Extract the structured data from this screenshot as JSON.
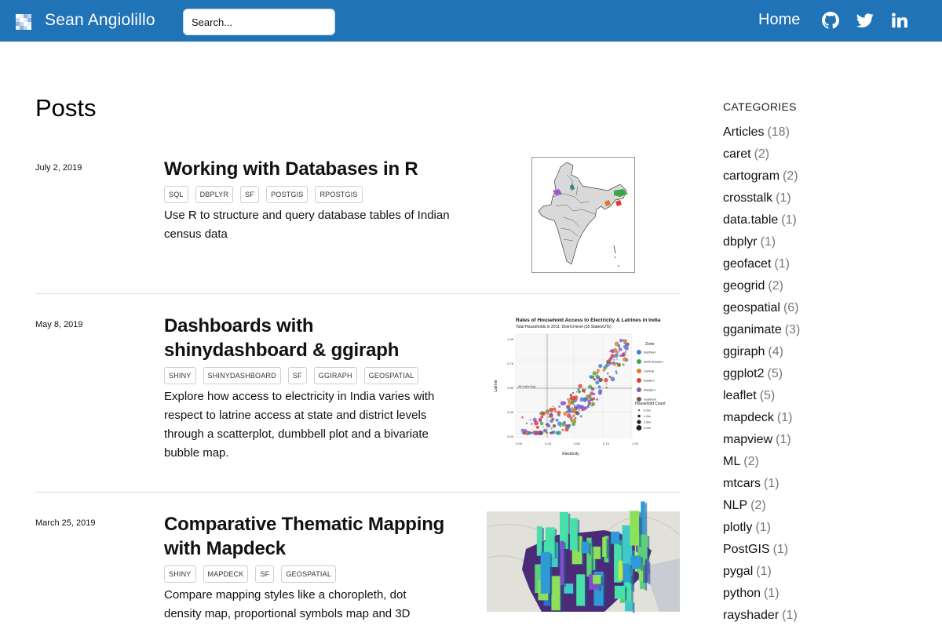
{
  "nav": {
    "brand": "Sean Angiolillo",
    "search_placeholder": "Search...",
    "home_label": "Home",
    "icons": [
      "github-icon",
      "twitter-icon",
      "linkedin-icon"
    ],
    "bar_color": "#1f73b6"
  },
  "page_title": "Posts",
  "posts": [
    {
      "date": "July 2, 2019",
      "title": "Working with Databases in R",
      "tags": [
        "SQL",
        "DBPLYR",
        "SF",
        "POSTGIS",
        "RPOSTGIS"
      ],
      "description": "Use R to structure and query database tables of Indian census data"
    },
    {
      "date": "May 8, 2019",
      "title": "Dashboards with shinydashboard & ggiraph",
      "tags": [
        "SHINY",
        "SHINYDASHBOARD",
        "SF",
        "GGIRAPH",
        "GEOSPATIAL"
      ],
      "description": "Explore how access to electricity in India varies with respect to latrine access at state and district levels through a scatterplot, dumbbell plot and a bivariate bubble map.",
      "thumbnail": {
        "title": "Rates of Household Access to Electricity & Latrines in India",
        "subtitle": "Total Households in 2011: District-level (35 States/UTs)",
        "xlabel": "Electricity",
        "ylabel": "Latrine",
        "annotation": "All India Avg.",
        "x_ticks": [
          "0.00",
          "0.25",
          "0.50",
          "0.75",
          "1.00"
        ],
        "y_ticks": [
          "1.00",
          "0.75",
          "0.50",
          "0.25",
          "0.00"
        ],
        "zone_title": "Zone",
        "zones": [
          {
            "name": "Northern",
            "color": "#3a7dd8"
          },
          {
            "name": "North Eastern",
            "color": "#3aa84a"
          },
          {
            "name": "Central",
            "color": "#e07a2a"
          },
          {
            "name": "Eastern",
            "color": "#e4372d"
          },
          {
            "name": "Western",
            "color": "#8d54c4"
          },
          {
            "name": "Southern",
            "color": "#8b4a3c"
          }
        ],
        "count_title": "Household Count",
        "counts": [
          "0.5m",
          "1.0m",
          "1.5m",
          "2.0m"
        ]
      }
    },
    {
      "date": "March 25, 2019",
      "title": "Comparative Thematic Mapping with Mapdeck",
      "tags": [
        "SHINY",
        "MAPDECK",
        "SF",
        "GEOSPATIAL"
      ],
      "description": "Compare mapping styles like a choropleth, dot density map, proportional symbols map and 3D"
    }
  ],
  "sidebar": {
    "heading": "CATEGORIES",
    "categories": [
      {
        "name": "Articles",
        "count": "(18)"
      },
      {
        "name": "caret",
        "count": "(2)"
      },
      {
        "name": "cartogram",
        "count": "(2)"
      },
      {
        "name": "crosstalk",
        "count": "(1)"
      },
      {
        "name": "data.table",
        "count": "(1)"
      },
      {
        "name": "dbplyr",
        "count": "(1)"
      },
      {
        "name": "geofacet",
        "count": "(1)"
      },
      {
        "name": "geogrid",
        "count": "(2)"
      },
      {
        "name": "geospatial",
        "count": "(6)"
      },
      {
        "name": "gganimate",
        "count": "(3)"
      },
      {
        "name": "ggiraph",
        "count": "(4)"
      },
      {
        "name": "ggplot2",
        "count": "(5)"
      },
      {
        "name": "leaflet",
        "count": "(5)"
      },
      {
        "name": "mapdeck",
        "count": "(1)"
      },
      {
        "name": "mapview",
        "count": "(1)"
      },
      {
        "name": "ML",
        "count": "(2)"
      },
      {
        "name": "mtcars",
        "count": "(1)"
      },
      {
        "name": "NLP",
        "count": "(2)"
      },
      {
        "name": "plotly",
        "count": "(1)"
      },
      {
        "name": "PostGIS",
        "count": "(1)"
      },
      {
        "name": "pygal",
        "count": "(1)"
      },
      {
        "name": "python",
        "count": "(1)"
      },
      {
        "name": "rayshader",
        "count": "(1)"
      }
    ]
  }
}
